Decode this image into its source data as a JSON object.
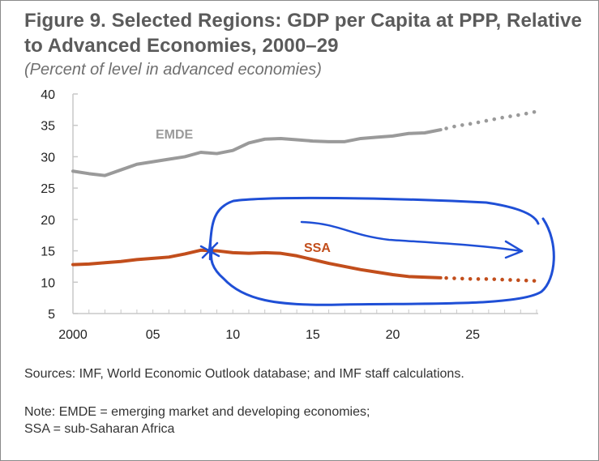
{
  "title": "Figure 9. Selected Regions: GDP per Capita at PPP, Relative to Advanced Economies, 2000–29",
  "subtitle": "(Percent of level in advanced economies)",
  "sources": "Sources: IMF, World Economic Outlook database; and IMF staff calculations.",
  "note_lines": [
    "Note: EMDE = emerging market and developing economies;",
    "SSA = sub-Saharan Africa"
  ],
  "colors": {
    "emde": "#9a9a9a",
    "ssa": "#c24e1c",
    "annotation": "#1f4fd6",
    "axis": "#c8c8c8"
  },
  "chart_data": {
    "type": "line",
    "ylim": [
      5,
      40
    ],
    "xlim": [
      2000,
      2029
    ],
    "y_ticks": [
      5,
      10,
      15,
      20,
      25,
      30,
      35,
      40
    ],
    "x_ticks": [
      {
        "value": 2000,
        "label": "2000"
      },
      {
        "value": 2005,
        "label": "05"
      },
      {
        "value": 2010,
        "label": "10"
      },
      {
        "value": 2015,
        "label": "15"
      },
      {
        "value": 2020,
        "label": "20"
      },
      {
        "value": 2025,
        "label": "25"
      }
    ],
    "projection_start": 2023,
    "series": [
      {
        "name": "EMDE",
        "color": "#9a9a9a",
        "x": [
          2000,
          2001,
          2002,
          2003,
          2004,
          2005,
          2006,
          2007,
          2008,
          2009,
          2010,
          2011,
          2012,
          2013,
          2014,
          2015,
          2016,
          2017,
          2018,
          2019,
          2020,
          2021,
          2022,
          2023,
          2024,
          2025,
          2026,
          2027,
          2028,
          2029
        ],
        "y": [
          27.7,
          27.3,
          27.0,
          27.9,
          28.8,
          29.2,
          29.6,
          30.0,
          30.7,
          30.5,
          31.0,
          32.2,
          32.8,
          32.9,
          32.7,
          32.5,
          32.4,
          32.4,
          32.9,
          33.1,
          33.3,
          33.7,
          33.8,
          34.3,
          34.9,
          35.3,
          35.8,
          36.3,
          36.7,
          37.2
        ]
      },
      {
        "name": "SSA",
        "color": "#c24e1c",
        "x": [
          2000,
          2001,
          2002,
          2003,
          2004,
          2005,
          2006,
          2007,
          2008,
          2009,
          2010,
          2011,
          2012,
          2013,
          2014,
          2015,
          2016,
          2017,
          2018,
          2019,
          2020,
          2021,
          2022,
          2023,
          2024,
          2025,
          2026,
          2027,
          2028,
          2029
        ],
        "y": [
          12.8,
          12.9,
          13.1,
          13.3,
          13.6,
          13.8,
          14.0,
          14.5,
          15.1,
          15.0,
          14.7,
          14.6,
          14.7,
          14.6,
          14.2,
          13.6,
          13.0,
          12.5,
          12.0,
          11.6,
          11.2,
          10.9,
          10.8,
          10.7,
          10.6,
          10.5,
          10.5,
          10.4,
          10.3,
          10.2
        ]
      }
    ]
  }
}
